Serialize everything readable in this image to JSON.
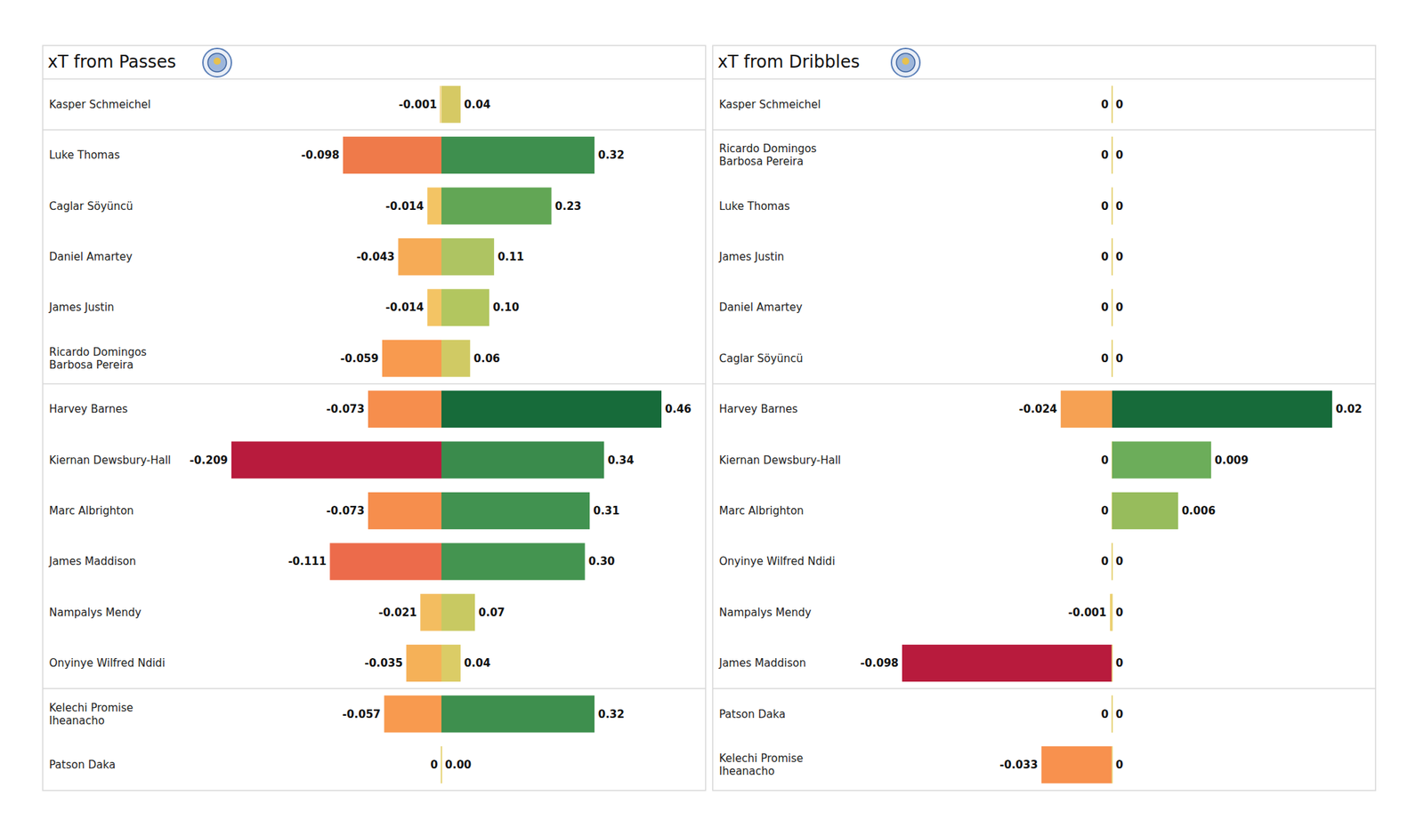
{
  "chart_data": [
    {
      "type": "bar",
      "orientation": "horizontal",
      "title": "xT from Passes",
      "categories": [
        "Kasper Schmeichel",
        "Luke Thomas",
        "Caglar Söyüncü",
        "Daniel Amartey",
        "James Justin",
        "Ricardo Domingos\nBarbosa Pereira",
        "Harvey Barnes",
        "Kiernan Dewsbury-Hall",
        "Marc Albrighton",
        "James Maddison",
        "Nampalys Mendy",
        "Onyinye Wilfred Ndidi",
        "Kelechi Promise\nIheanacho",
        "Patson Daka"
      ],
      "series": [
        {
          "values": [
            -0.001,
            -0.098,
            -0.014,
            -0.043,
            -0.014,
            -0.059,
            -0.073,
            -0.209,
            -0.073,
            -0.111,
            -0.021,
            -0.035,
            -0.057,
            0
          ],
          "colors": [
            "#f0c862",
            "#ef7a4a",
            "#f3c464",
            "#f6ab56",
            "#f3c464",
            "#f89a4f",
            "#f68e4d",
            "#b81b3d",
            "#f68e4d",
            "#ec6b4b",
            "#f3bd60",
            "#f5b158",
            "#f89a4f",
            "#e6d37a"
          ]
        },
        {
          "values": [
            0.04,
            0.32,
            0.23,
            0.11,
            0.1,
            0.06,
            0.46,
            0.34,
            0.31,
            0.3,
            0.07,
            0.04,
            0.32,
            0
          ],
          "value_labels": [
            "0.04",
            "0.32",
            "0.23",
            "0.11",
            "0.10",
            "0.06",
            "0.46",
            "0.34",
            "0.31",
            "0.30",
            "0.07",
            "0.04",
            "0.32",
            "0.00"
          ],
          "colors": [
            "#d6c964",
            "#3e8f4e",
            "#62a655",
            "#aec462",
            "#b2c65f",
            "#d0ca64",
            "#176b3a",
            "#3a8b4c",
            "#419250",
            "#449450",
            "#c8c962",
            "#dbcc66",
            "#3e8f4e",
            "#e6d37a"
          ]
        }
      ],
      "xlim": [
        -0.209,
        0.46
      ],
      "data_labels": true,
      "tick_labels": false
    },
    {
      "type": "bar",
      "orientation": "horizontal",
      "title": "xT from Dribbles",
      "categories": [
        "Kasper Schmeichel",
        "Ricardo Domingos\nBarbosa Pereira",
        "Luke Thomas",
        "James Justin",
        "Daniel Amartey",
        "Caglar Söyüncü",
        "Harvey Barnes",
        "Kiernan Dewsbury-Hall",
        "Marc Albrighton",
        "Onyinye Wilfred Ndidi",
        "Nampalys Mendy",
        "James Maddison",
        "Patson Daka",
        "Kelechi Promise\nIheanacho"
      ],
      "series": [
        {
          "values": [
            0,
            0,
            0,
            0,
            0,
            0,
            -0.024,
            0,
            0,
            0,
            -0.001,
            -0.098,
            0,
            -0.033
          ],
          "colors": [
            "#e6d37a",
            "#e6d37a",
            "#e6d37a",
            "#e6d37a",
            "#e6d37a",
            "#e6d37a",
            "#f6a153",
            "#e6d37a",
            "#e6d37a",
            "#e6d37a",
            "#eecf70",
            "#b81b3d",
            "#e6d37a",
            "#f8914e"
          ]
        },
        {
          "values": [
            0,
            0,
            0,
            0,
            0,
            0,
            0.02,
            0.009,
            0.006,
            0,
            0,
            0,
            0,
            0
          ],
          "colors": [
            "#e6d37a",
            "#e6d37a",
            "#e6d37a",
            "#e6d37a",
            "#e6d37a",
            "#e6d37a",
            "#176b3a",
            "#6cad5a",
            "#97bc5c",
            "#e6d37a",
            "#e6d37a",
            "#e6d37a",
            "#e6d37a",
            "#e6d37a"
          ]
        }
      ],
      "xlim": [
        -0.098,
        0.02
      ],
      "data_labels": true,
      "tick_labels": false
    }
  ]
}
